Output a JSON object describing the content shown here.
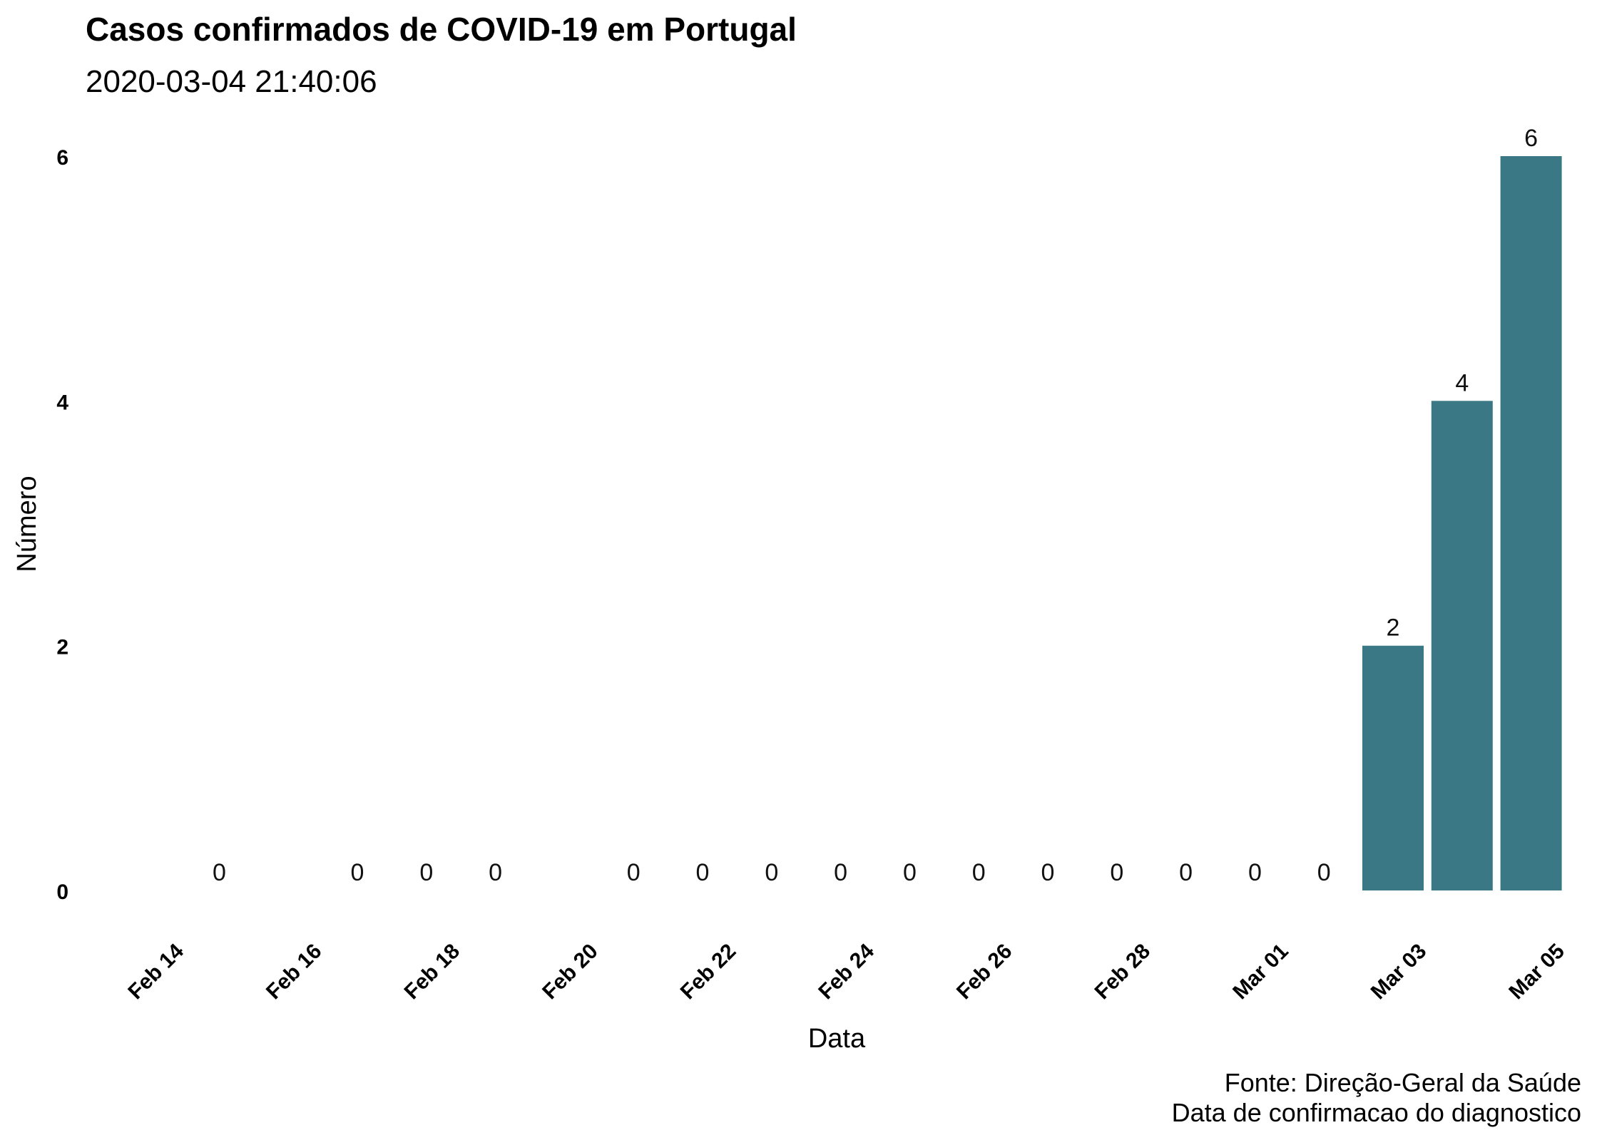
{
  "chart_data": {
    "type": "bar",
    "title": "Casos confirmados de COVID-19 em Portugal",
    "subtitle": "2020-03-04 21:40:06",
    "xlabel": "Data",
    "ylabel": "Número",
    "caption_lines": [
      "Fonte: Direção-Geral da Saúde",
      "Data de confirmacao do diagnostico"
    ],
    "bar_color": "#3a7886",
    "grid": false,
    "x_axis": {
      "type": "date",
      "range": [
        "2020-02-13",
        "2020-03-05"
      ]
    },
    "ylim": [
      0,
      6
    ],
    "x_ticks": [
      {
        "date": "2020-02-14",
        "label": "Feb 14"
      },
      {
        "date": "2020-02-16",
        "label": "Feb 16"
      },
      {
        "date": "2020-02-18",
        "label": "Feb 18"
      },
      {
        "date": "2020-02-20",
        "label": "Feb 20"
      },
      {
        "date": "2020-02-22",
        "label": "Feb 22"
      },
      {
        "date": "2020-02-24",
        "label": "Feb 24"
      },
      {
        "date": "2020-02-26",
        "label": "Feb 26"
      },
      {
        "date": "2020-02-28",
        "label": "Feb 28"
      },
      {
        "date": "2020-03-01",
        "label": "Mar 01"
      },
      {
        "date": "2020-03-03",
        "label": "Mar 03"
      },
      {
        "date": "2020-03-05",
        "label": "Mar 05"
      }
    ],
    "y_ticks": [
      {
        "value": 0,
        "label": "0"
      },
      {
        "value": 2,
        "label": "2"
      },
      {
        "value": 4,
        "label": "4"
      },
      {
        "value": 6,
        "label": "6"
      }
    ],
    "data": [
      {
        "date": "2020-02-14",
        "value": 0,
        "label": "0"
      },
      {
        "date": "2020-02-16",
        "value": 0,
        "label": "0"
      },
      {
        "date": "2020-02-17",
        "value": 0,
        "label": "0"
      },
      {
        "date": "2020-02-18",
        "value": 0,
        "label": "0"
      },
      {
        "date": "2020-02-20",
        "value": 0,
        "label": "0"
      },
      {
        "date": "2020-02-21",
        "value": 0,
        "label": "0"
      },
      {
        "date": "2020-02-22",
        "value": 0,
        "label": "0"
      },
      {
        "date": "2020-02-23",
        "value": 0,
        "label": "0"
      },
      {
        "date": "2020-02-24",
        "value": 0,
        "label": "0"
      },
      {
        "date": "2020-02-25",
        "value": 0,
        "label": "0"
      },
      {
        "date": "2020-02-26",
        "value": 0,
        "label": "0"
      },
      {
        "date": "2020-02-27",
        "value": 0,
        "label": "0"
      },
      {
        "date": "2020-02-28",
        "value": 0,
        "label": "0"
      },
      {
        "date": "2020-02-29",
        "value": 0,
        "label": "0"
      },
      {
        "date": "2020-03-01",
        "value": 0,
        "label": "0"
      },
      {
        "date": "2020-03-02",
        "value": 2,
        "label": "2"
      },
      {
        "date": "2020-03-03",
        "value": 4,
        "label": "4"
      },
      {
        "date": "2020-03-04",
        "value": 6,
        "label": "6"
      }
    ]
  }
}
